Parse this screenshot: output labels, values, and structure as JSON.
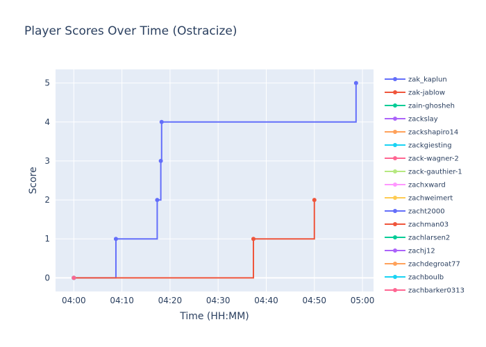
{
  "chart_data": {
    "type": "line",
    "line_shape": "step-after",
    "title": "Player Scores Over Time (Ostracize)",
    "xlabel": "Time (HH:MM)",
    "ylabel": "Score",
    "x_ticks": [
      "04:00",
      "04:10",
      "04:20",
      "04:30",
      "04:40",
      "04:50",
      "05:00"
    ],
    "y_ticks": [
      0,
      1,
      2,
      3,
      4,
      5
    ],
    "xlim": [
      "03:56:12",
      "05:02:18"
    ],
    "ylim": [
      -0.35,
      5.35
    ],
    "grid": true,
    "plot_background": "#E5ECF6",
    "legend_position": "right",
    "series": [
      {
        "name": "zak_kaplun",
        "color": "#636efa",
        "x": [
          "04:00:00",
          "04:08:45",
          "04:17:20",
          "04:18:05",
          "04:18:15",
          "04:58:40"
        ],
        "y": [
          0,
          1,
          2,
          3,
          4,
          5
        ]
      },
      {
        "name": "zak-jablow",
        "color": "#EF553B",
        "x": [
          "04:00:00",
          "04:37:20",
          "04:50:00"
        ],
        "y": [
          0,
          1,
          2
        ]
      },
      {
        "name": "zain-ghosheh",
        "color": "#00cc96",
        "x": [
          "04:00:00"
        ],
        "y": [
          0
        ]
      },
      {
        "name": "zackslay",
        "color": "#ab63fa",
        "x": [
          "04:00:00"
        ],
        "y": [
          0
        ]
      },
      {
        "name": "zackshapiro14",
        "color": "#FFA15A",
        "x": [
          "04:00:00"
        ],
        "y": [
          0
        ]
      },
      {
        "name": "zackgiesting",
        "color": "#19d3f3",
        "x": [
          "04:00:00"
        ],
        "y": [
          0
        ]
      },
      {
        "name": "zack-wagner-2",
        "color": "#FF6692",
        "x": [
          "04:00:00"
        ],
        "y": [
          0
        ]
      },
      {
        "name": "zack-gauthier-1",
        "color": "#B6E880",
        "x": [
          "04:00:00"
        ],
        "y": [
          0
        ]
      },
      {
        "name": "zachxward",
        "color": "#FF97FF",
        "x": [
          "04:00:00"
        ],
        "y": [
          0
        ]
      },
      {
        "name": "zachweimert",
        "color": "#FECB52",
        "x": [
          "04:00:00"
        ],
        "y": [
          0
        ]
      },
      {
        "name": "zacht2000",
        "color": "#636efa",
        "x": [
          "04:00:00"
        ],
        "y": [
          0
        ]
      },
      {
        "name": "zachman03",
        "color": "#EF553B",
        "x": [
          "04:00:00"
        ],
        "y": [
          0
        ]
      },
      {
        "name": "zachlarsen2",
        "color": "#00cc96",
        "x": [
          "04:00:00"
        ],
        "y": [
          0
        ]
      },
      {
        "name": "zachj12",
        "color": "#ab63fa",
        "x": [
          "04:00:00"
        ],
        "y": [
          0
        ]
      },
      {
        "name": "zachdegroat77",
        "color": "#FFA15A",
        "x": [
          "04:00:00"
        ],
        "y": [
          0
        ]
      },
      {
        "name": "zachboulb",
        "color": "#19d3f3",
        "x": [
          "04:00:00"
        ],
        "y": [
          0
        ]
      },
      {
        "name": "zachbarker0313",
        "color": "#FF6692",
        "x": [
          "04:00:00"
        ],
        "y": [
          0
        ]
      }
    ]
  }
}
